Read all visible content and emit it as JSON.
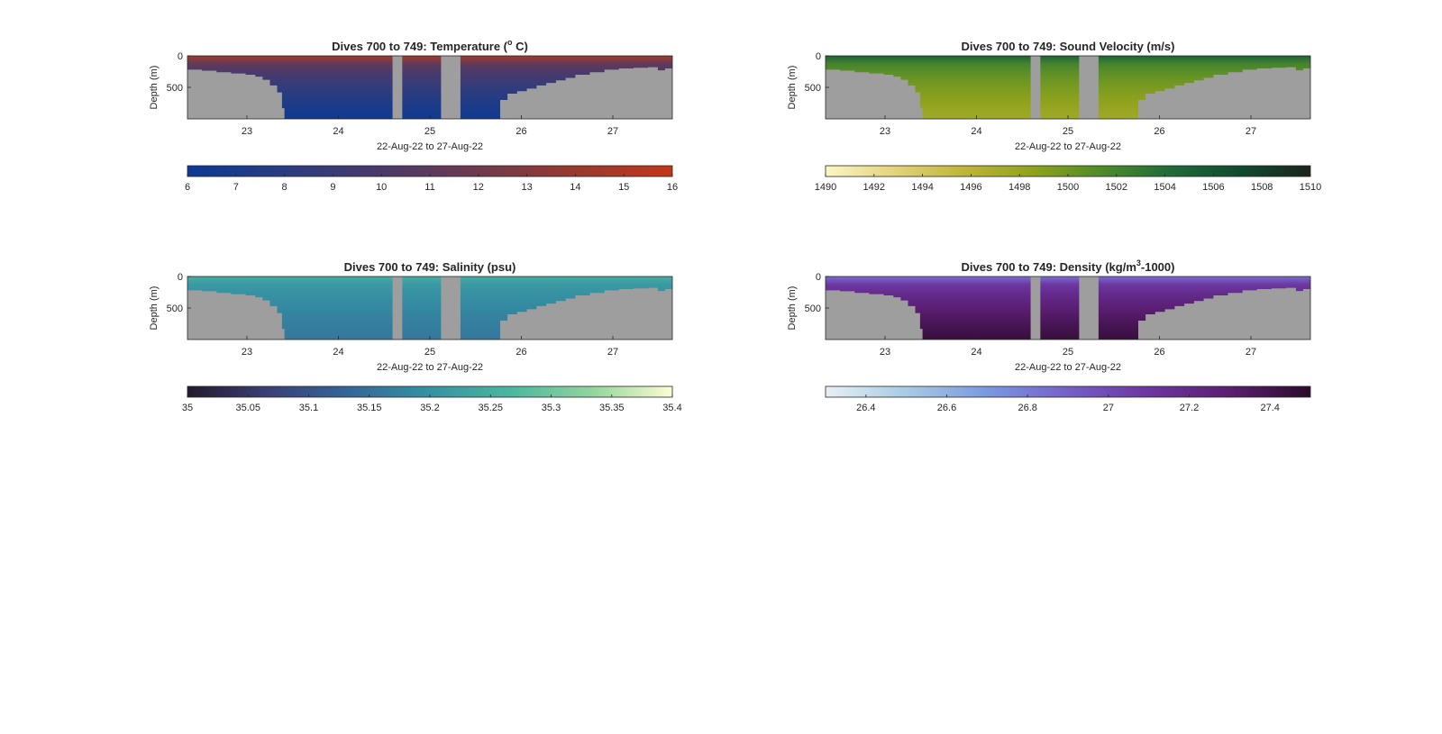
{
  "figure": {
    "chart_data": [
      {
        "type": "heatmap",
        "title_prefix": "Dives 700 to 749: Temperature (",
        "title_sup": "o",
        "title_suffix": " C)",
        "xlabel": "22-Aug-22 to 27-Aug-22",
        "ylabel": "Depth (m)",
        "x_ticks": [
          "23",
          "24",
          "25",
          "26",
          "27"
        ],
        "y_ticks": [
          "0",
          "500"
        ],
        "colorbar_ticks": [
          "6",
          "7",
          "8",
          "9",
          "10",
          "11",
          "12",
          "13",
          "14",
          "15",
          "16"
        ],
        "clim": [
          6,
          16
        ],
        "colormap": [
          "#0b3a93",
          "#2a3c80",
          "#4a3a6a",
          "#6e3a4e",
          "#98392f",
          "#c2371a"
        ],
        "surface_value": 14.5,
        "deep_value": 6.3,
        "xlim": [
          22.35,
          27.65
        ],
        "ylim": [
          0,
          1000
        ]
      },
      {
        "type": "heatmap",
        "title": "Dives 700 to 749: Sound Velocity (m/s)",
        "xlabel": "22-Aug-22 to 27-Aug-22",
        "ylabel": "Depth (m)",
        "x_ticks": [
          "23",
          "24",
          "25",
          "26",
          "27"
        ],
        "y_ticks": [
          "0",
          "500"
        ],
        "colorbar_ticks": [
          "1490",
          "1492",
          "1494",
          "1496",
          "1498",
          "1500",
          "1502",
          "1504",
          "1506",
          "1508",
          "1510"
        ],
        "clim": [
          1490,
          1510
        ],
        "colormap": [
          "#fbf6c4",
          "#e3d37c",
          "#bfb43a",
          "#8ea21c",
          "#4f8a2a",
          "#1e6b3a",
          "#104a2e",
          "#1c241c"
        ],
        "surface_value": 1505,
        "deep_value": 1497.5,
        "xlim": [
          22.35,
          27.65
        ],
        "ylim": [
          0,
          1000
        ]
      },
      {
        "type": "heatmap",
        "title": "Dives 700 to 749: Salinity (psu)",
        "xlabel": "22-Aug-22 to 27-Aug-22",
        "ylabel": "Depth (m)",
        "x_ticks": [
          "23",
          "24",
          "25",
          "26",
          "27"
        ],
        "y_ticks": [
          "0",
          "500"
        ],
        "colorbar_ticks": [
          "35",
          "35.05",
          "35.1",
          "35.15",
          "35.2",
          "35.25",
          "35.3",
          "35.35",
          "35.4"
        ],
        "clim": [
          35,
          35.4
        ],
        "colormap": [
          "#231a2e",
          "#3a3f78",
          "#33679a",
          "#3592a3",
          "#4cb6a0",
          "#8fd59c",
          "#fdfcd2"
        ],
        "surface_value": 35.25,
        "deep_value": 35.16,
        "xlim": [
          22.35,
          27.65
        ],
        "ylim": [
          0,
          1000
        ]
      },
      {
        "type": "heatmap",
        "title_prefix": "Dives 700 to 749: Density (kg/m",
        "title_sup": "3",
        "title_suffix": "-1000)",
        "xlabel": "22-Aug-22 to 27-Aug-22",
        "ylabel": "Depth (m)",
        "x_ticks": [
          "23",
          "24",
          "25",
          "26",
          "27"
        ],
        "y_ticks": [
          "0",
          "500"
        ],
        "colorbar_ticks": [
          "26.4",
          "26.6",
          "26.8",
          "27",
          "27.2",
          "27.4"
        ],
        "clim": [
          26.3,
          27.5
        ],
        "colormap": [
          "#e8f0f3",
          "#a6cbe4",
          "#7a98e0",
          "#7560c8",
          "#6d35a0",
          "#5a1e72",
          "#2c0a2a"
        ],
        "surface_value": 26.85,
        "deep_value": 27.45,
        "xlim": [
          22.35,
          27.65
        ],
        "ylim": [
          0,
          1000
        ]
      }
    ],
    "colors": {
      "bathymetry": "#9e9e9e",
      "axis": "#262626",
      "text": "#262626"
    }
  }
}
